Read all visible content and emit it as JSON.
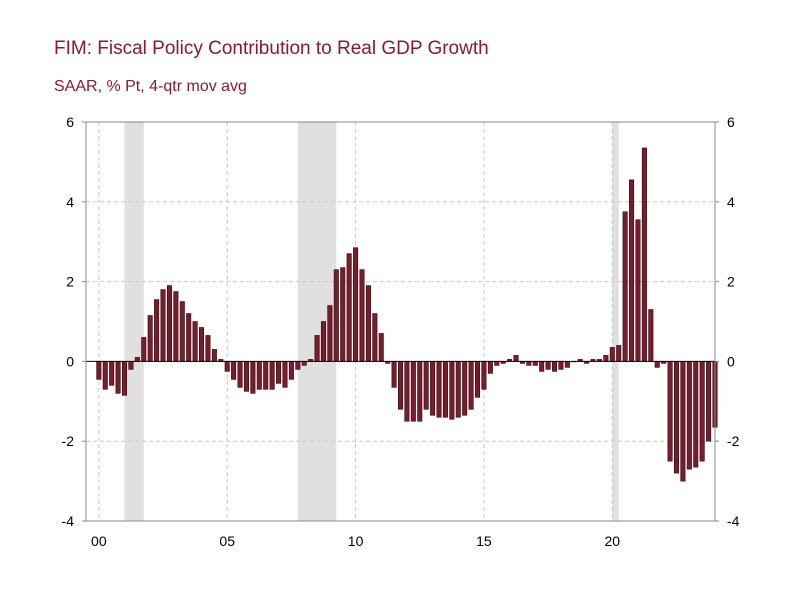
{
  "title": "FIM: Fiscal Policy Contribution to Real GDP Growth",
  "subtitle": "SAAR, % Pt, 4-qtr mov avg",
  "colors": {
    "bar": "#7a1c2c",
    "recession": "#e0e0e0",
    "grid": "#c8c8c8",
    "title": "#8c1a2b"
  },
  "chart_data": {
    "type": "bar",
    "title": "FIM: Fiscal Policy Contribution to Real GDP Growth",
    "ylabel": "SAAR, % Pt, 4-qtr mov avg",
    "xlabel": "",
    "ylim": [
      -4,
      6
    ],
    "xlim": [
      1999.5,
      2024
    ],
    "y_ticks_left": [
      "6",
      "4",
      "2",
      "0",
      "-2",
      "-4"
    ],
    "y_ticks_right": [
      "6",
      "4",
      "2",
      "0",
      "-2",
      "-4"
    ],
    "y_tick_values": [
      6,
      4,
      2,
      0,
      -2,
      -4
    ],
    "x_ticks": [
      {
        "value": 2000,
        "label": "00"
      },
      {
        "value": 2005,
        "label": "05"
      },
      {
        "value": 2010,
        "label": "10"
      },
      {
        "value": 2015,
        "label": "15"
      },
      {
        "value": 2020,
        "label": "20"
      }
    ],
    "recessions": [
      [
        2001.0,
        2001.75
      ],
      [
        2007.75,
        2009.25
      ],
      [
        2020.0,
        2020.25
      ]
    ],
    "start": 2000.0,
    "step": 0.25,
    "series": [
      {
        "name": "FIM",
        "values": [
          -0.45,
          -0.7,
          -0.6,
          -0.8,
          -0.85,
          -0.2,
          0.1,
          0.6,
          1.15,
          1.55,
          1.8,
          1.9,
          1.75,
          1.5,
          1.2,
          1.0,
          0.85,
          0.65,
          0.3,
          0.05,
          -0.25,
          -0.45,
          -0.65,
          -0.75,
          -0.8,
          -0.7,
          -0.7,
          -0.7,
          -0.55,
          -0.65,
          -0.45,
          -0.2,
          -0.1,
          0.05,
          0.65,
          1.0,
          1.4,
          2.3,
          2.35,
          2.7,
          2.85,
          2.3,
          1.9,
          1.2,
          0.7,
          -0.05,
          -0.65,
          -1.2,
          -1.5,
          -1.5,
          -1.5,
          -1.2,
          -1.35,
          -1.4,
          -1.4,
          -1.45,
          -1.4,
          -1.35,
          -1.2,
          -0.9,
          -0.7,
          -0.3,
          -0.1,
          -0.05,
          0.05,
          0.15,
          -0.05,
          -0.1,
          -0.1,
          -0.25,
          -0.2,
          -0.25,
          -0.2,
          -0.15,
          0.0,
          0.05,
          -0.05,
          0.05,
          0.05,
          0.15,
          0.35,
          0.4,
          3.75,
          4.55,
          3.55,
          5.35,
          1.3,
          -0.15,
          -0.05,
          -2.5,
          -2.8,
          -3.0,
          -2.7,
          -2.65,
          -2.5,
          -2.0,
          -1.65
        ]
      }
    ]
  }
}
